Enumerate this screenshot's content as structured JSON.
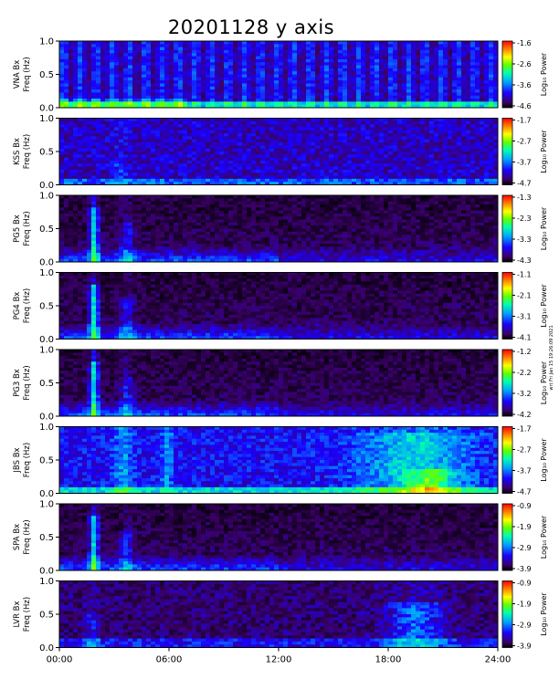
{
  "chart_data": {
    "type": "heatmap",
    "title": "20201128 y axis",
    "side_credit": "wrt Fri Jan 15 19:26:09 2021",
    "x_ticks": [
      "00:00",
      "06:00",
      "12:00",
      "18:00",
      "24:00"
    ],
    "x_range_hours": [
      0,
      24
    ],
    "y_range_hz": [
      0,
      1
    ],
    "y_ticks": [
      "0.0",
      "0.5",
      "1.0"
    ],
    "colorbar_label": "Log₁₀ Power",
    "colormap": [
      "#000000",
      "#3a0066",
      "#1a00ff",
      "#00a0ff",
      "#00ffb0",
      "#60ff00",
      "#ffff00",
      "#ff8000",
      "#ff0000"
    ],
    "panels": [
      {
        "station": "VNA Bx",
        "ylabel": "Freq (Hz)",
        "cbar_ticks": [
          "-1.6",
          "-2.6",
          "-3.6",
          "-4.6"
        ],
        "pattern": "stripes"
      },
      {
        "station": "KSS Bx",
        "ylabel": "Freq (Hz)",
        "cbar_ticks": [
          "-1.7",
          "-2.7",
          "-3.7",
          "-4.7"
        ],
        "pattern": "noisy"
      },
      {
        "station": "PG5 Bx",
        "ylabel": "Freq (Hz)",
        "cbar_ticks": [
          "-1.3",
          "-2.3",
          "-3.3",
          "-4.3"
        ],
        "pattern": "dark"
      },
      {
        "station": "PG4 Bx",
        "ylabel": "Freq (Hz)",
        "cbar_ticks": [
          "-1.1",
          "-2.1",
          "-3.1",
          "-4.1"
        ],
        "pattern": "dark"
      },
      {
        "station": "PG3 Bx",
        "ylabel": "Freq (Hz)",
        "cbar_ticks": [
          "-1.2",
          "-2.2",
          "-3.2",
          "-4.2"
        ],
        "pattern": "dark"
      },
      {
        "station": "JBS Bx",
        "ylabel": "Freq (Hz)",
        "cbar_ticks": [
          "-1.7",
          "-2.7",
          "-3.7",
          "-4.7"
        ],
        "pattern": "bright"
      },
      {
        "station": "SPA Bx",
        "ylabel": "Freq (Hz)",
        "cbar_ticks": [
          "-0.9",
          "-1.9",
          "-2.9",
          "-3.9"
        ],
        "pattern": "dark"
      },
      {
        "station": "LVR Bx",
        "ylabel": "Freq (Hz)",
        "cbar_ticks": [
          "-0.9",
          "-1.9",
          "-2.9",
          "-3.9"
        ],
        "pattern": "lvr"
      }
    ]
  }
}
